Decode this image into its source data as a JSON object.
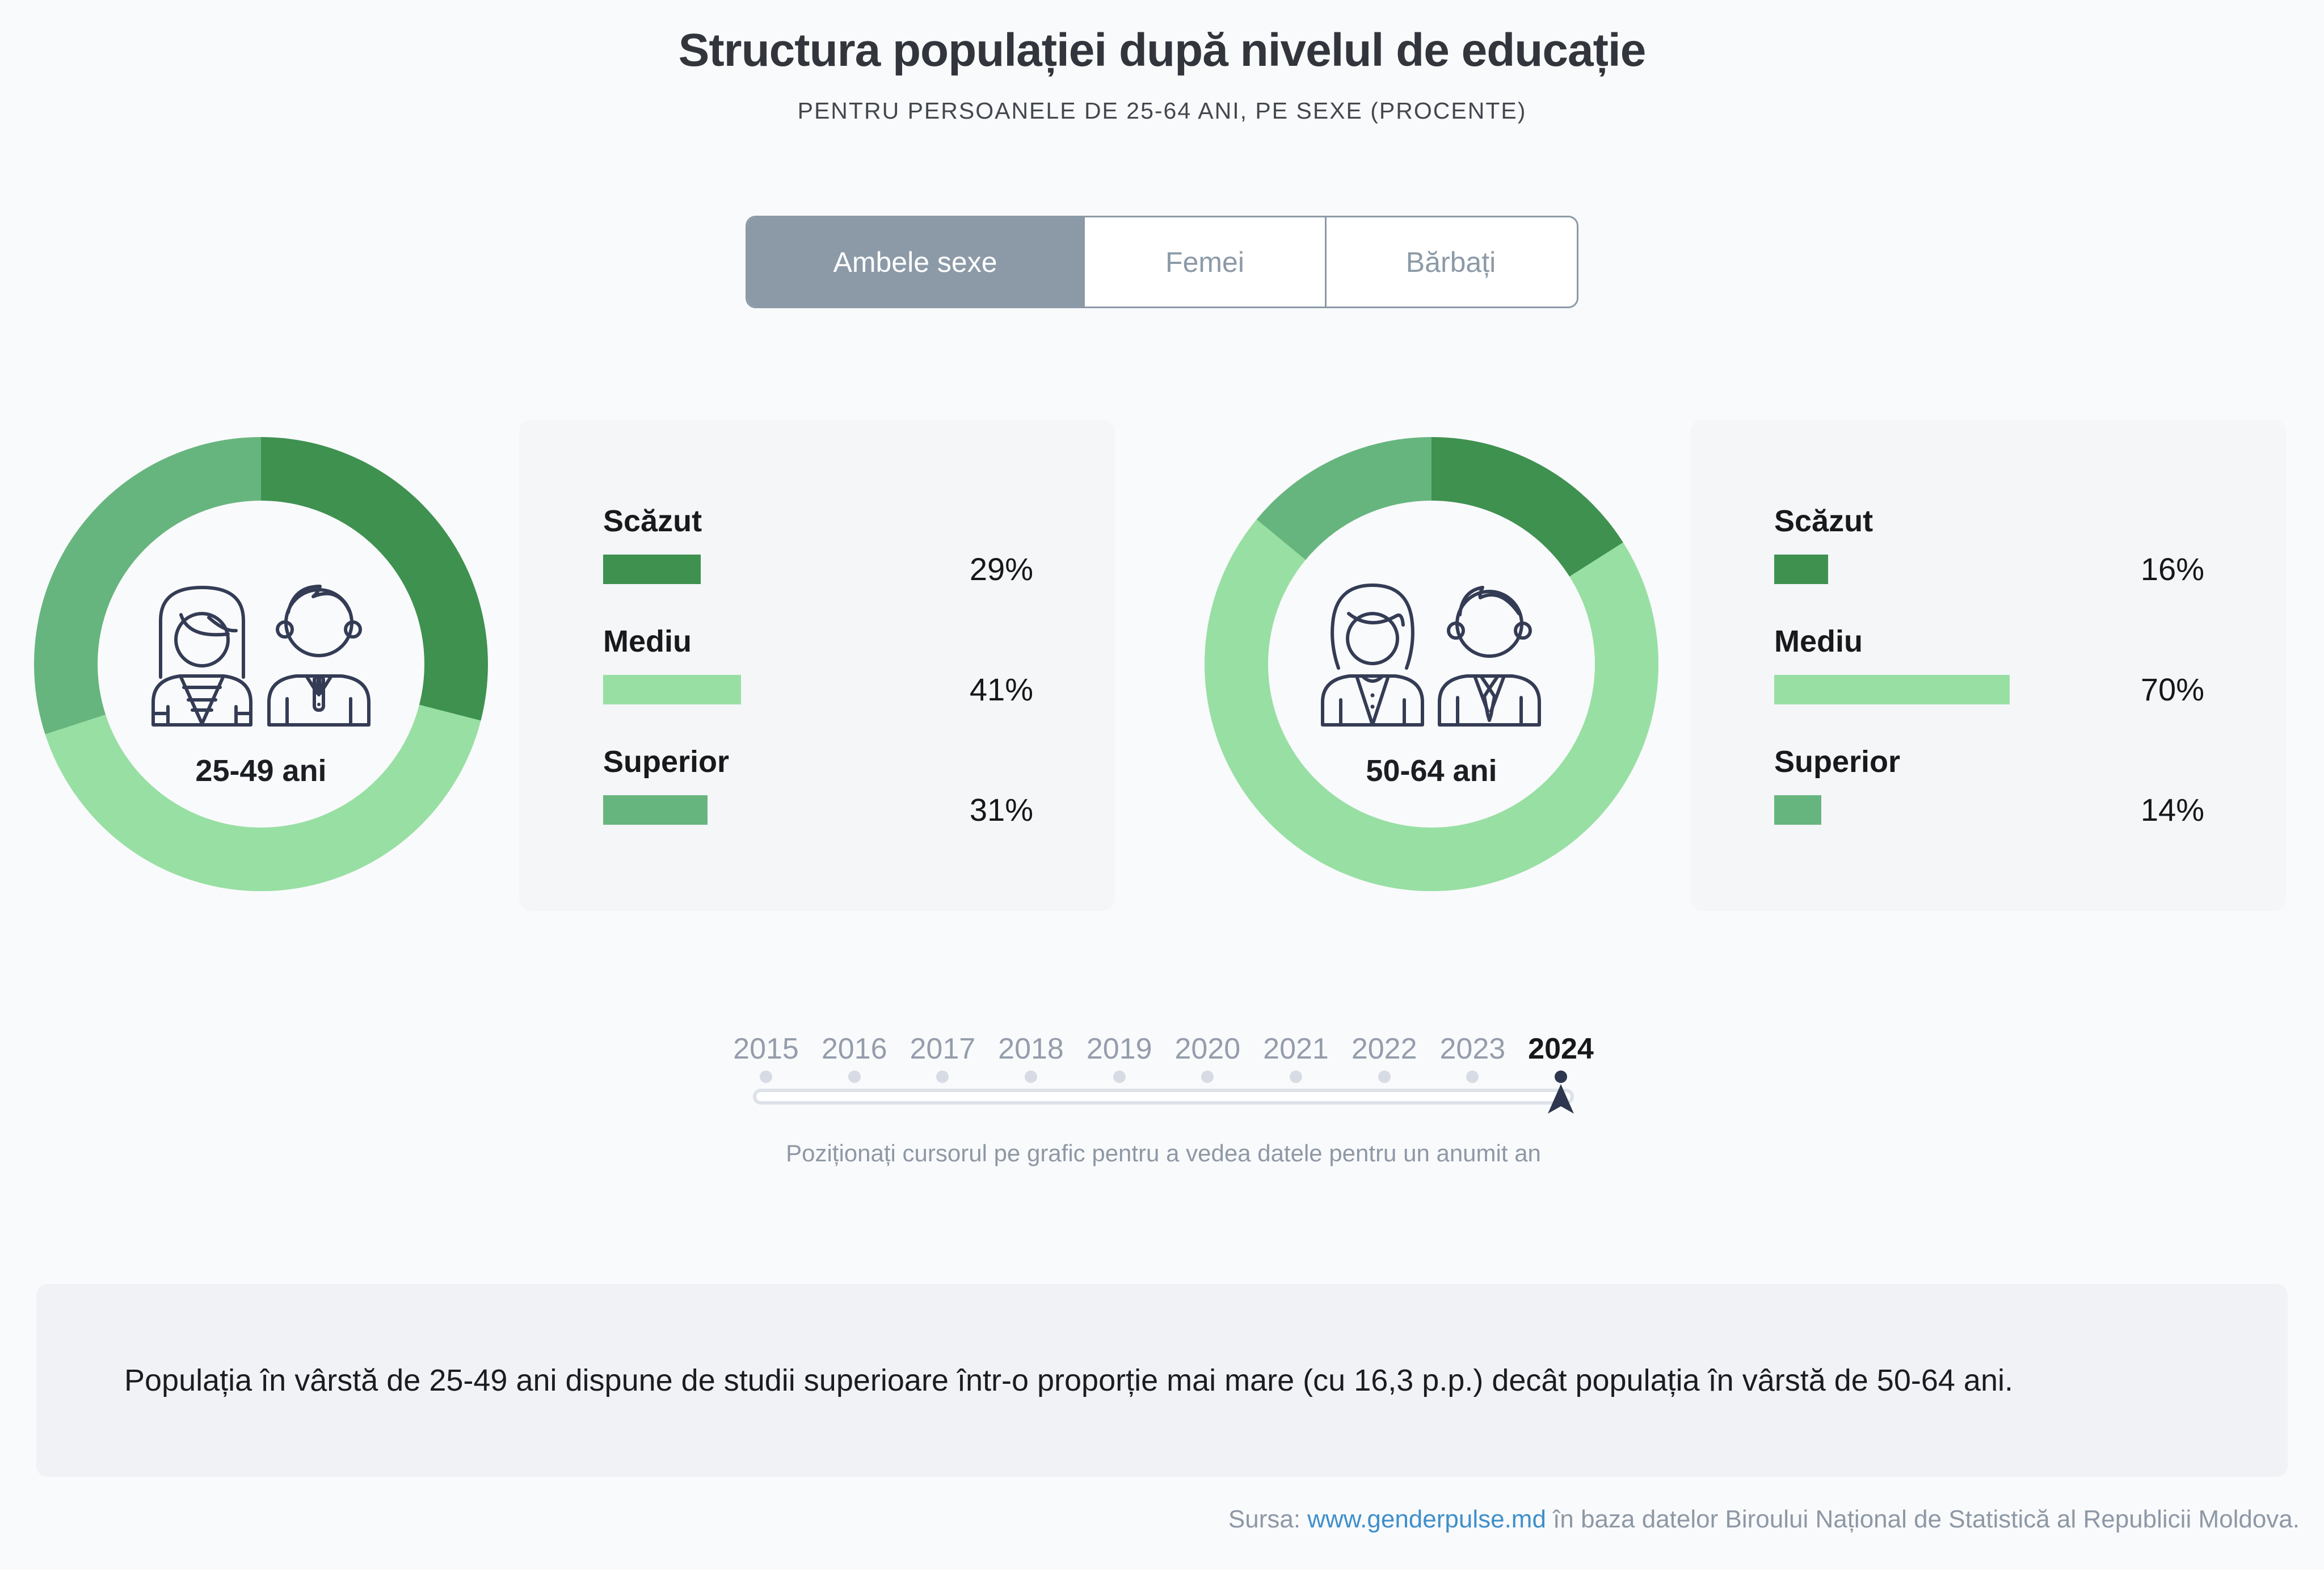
{
  "page": {
    "title": "Structura populației după nivelul de educație",
    "subtitle": "PENTRU PERSOANELE DE 25-64 ANI, PE SEXE (PROCENTE)"
  },
  "tabs": [
    {
      "label": "Ambele sexe",
      "active": true
    },
    {
      "label": "Femei",
      "active": false
    },
    {
      "label": "Bărbați",
      "active": false
    }
  ],
  "colors": {
    "dark_green": "#3f9150",
    "light_green": "#98dfa3",
    "medium_green": "#67b57e",
    "tab_gray_blue": "#8c9aa7",
    "navy": "#2e374f",
    "gray_text": "#8e98a5",
    "link_blue": "#3f8fca",
    "panel_bg": "#f4f6f8",
    "note_bg": "#f0f2f5",
    "page_bg": "#f9fafc"
  },
  "chart_data": [
    {
      "type": "pie",
      "donut": true,
      "title": "25-49 ani",
      "labels": [
        "Scăzut",
        "Mediu",
        "Superior"
      ],
      "values": [
        29,
        41,
        31
      ],
      "colors": [
        "#3f9150",
        "#98dfa3",
        "#67b57e"
      ],
      "start": "top",
      "direction": "clockwise"
    },
    {
      "type": "pie",
      "donut": true,
      "title": "50-64 ani",
      "labels": [
        "Scăzut",
        "Mediu",
        "Superior"
      ],
      "values": [
        16,
        70,
        14
      ],
      "colors": [
        "#3f9150",
        "#98dfa3",
        "#67b57e"
      ],
      "start": "top",
      "direction": "clockwise"
    }
  ],
  "groups": [
    {
      "age_label": "25-49 ani",
      "bars": [
        {
          "label": "Scăzut",
          "value": 29,
          "display": "29%",
          "color": "#3f9150"
        },
        {
          "label": "Mediu",
          "value": 41,
          "display": "41%",
          "color": "#98dfa3"
        },
        {
          "label": "Superior",
          "value": 31,
          "display": "31%",
          "color": "#67b57e"
        }
      ]
    },
    {
      "age_label": "50-64 ani",
      "bars": [
        {
          "label": "Scăzut",
          "value": 16,
          "display": "16%",
          "color": "#3f9150"
        },
        {
          "label": "Mediu",
          "value": 70,
          "display": "70%",
          "color": "#98dfa3"
        },
        {
          "label": "Superior",
          "value": 14,
          "display": "14%",
          "color": "#67b57e"
        }
      ]
    }
  ],
  "slider": {
    "years": [
      "2015",
      "2016",
      "2017",
      "2018",
      "2019",
      "2020",
      "2021",
      "2022",
      "2023",
      "2024"
    ],
    "selected_year": "2024",
    "caption": "Poziționați cursorul pe grafic pentru a vedea datele pentru un anumit an"
  },
  "note": "Populația în vârstă de 25-49 ani dispune de studii superioare într-o proporție mai mare (cu 16,3 p.p.) decât populația în vârstă de 50-64 ani.",
  "source": {
    "prefix": "Sursa: ",
    "link": "www.genderpulse.md",
    "suffix": " în baza datelor Biroului Național de Statistică al Republicii Moldova."
  }
}
